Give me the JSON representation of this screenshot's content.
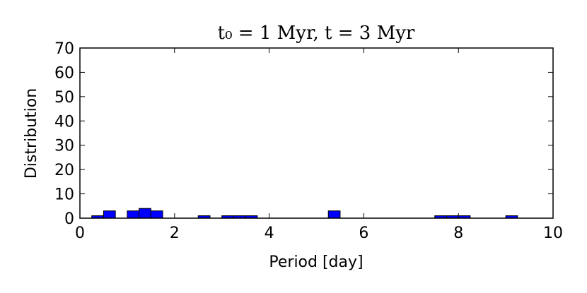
{
  "chart_data": {
    "type": "histogram",
    "title": "t₀ = 1 Myr, t = 3 Myr",
    "x_label": "Period [day]",
    "y_label": "Distribution",
    "bins": [
      0,
      0.25,
      0.5,
      0.75,
      1,
      1.25,
      1.5,
      1.75,
      2,
      2.25,
      2.5,
      2.75,
      3,
      3.25,
      3.5,
      3.75,
      4,
      4.25,
      4.5,
      4.75,
      5,
      5.25,
      5.5,
      5.75,
      6,
      6.25,
      6.5,
      6.75,
      7,
      7.25,
      7.5,
      7.75,
      8,
      8.25,
      8.5,
      8.75,
      9,
      9.25,
      9.5,
      9.75,
      10
    ],
    "values": [
      0,
      1,
      3,
      0,
      3,
      4,
      3,
      0,
      0,
      0,
      1,
      0,
      1,
      1,
      1,
      0,
      0,
      0,
      0,
      0,
      0,
      3,
      0,
      0,
      0,
      0,
      0,
      0,
      0,
      0,
      1,
      1,
      1,
      0,
      0,
      0,
      1,
      0,
      0,
      0
    ],
    "color": "#0000ff",
    "xlim": [
      0,
      10
    ],
    "xticks": [
      0,
      2,
      4,
      6,
      8,
      10
    ],
    "ylim": [
      0,
      70
    ],
    "yticks": [
      0,
      10,
      20,
      30,
      40,
      50,
      60,
      70
    ]
  }
}
